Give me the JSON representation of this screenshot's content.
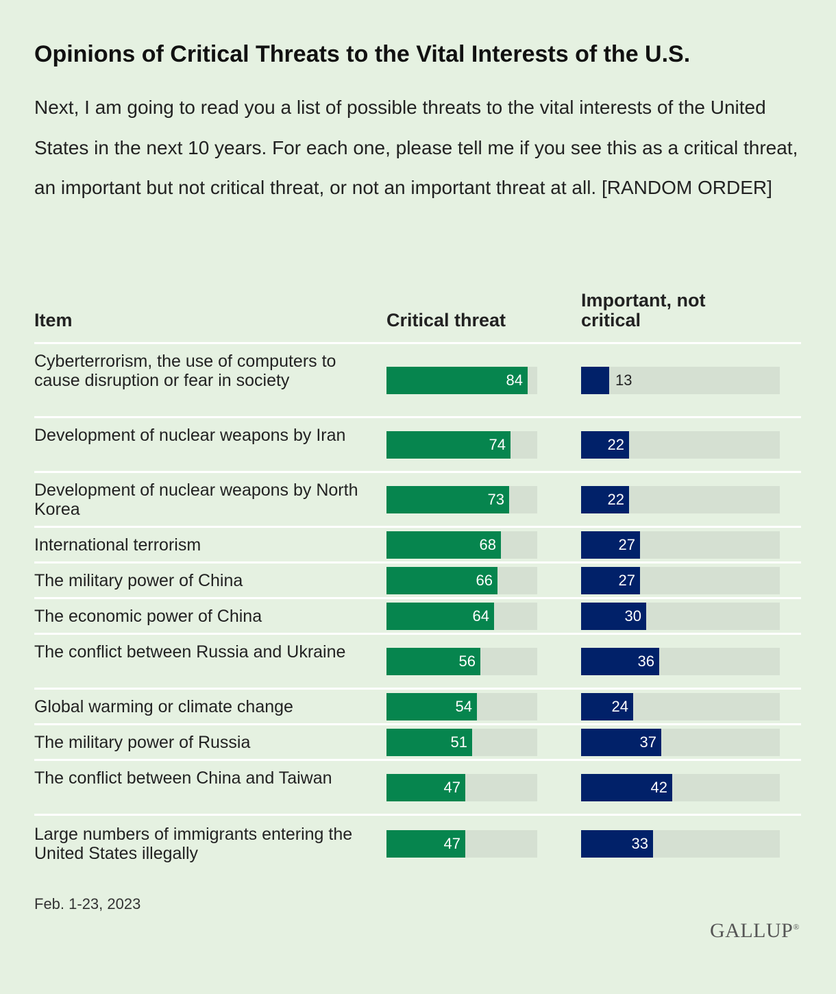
{
  "title": "Opinions of Critical Threats to the Vital Interests of the U.S.",
  "subtitle": "Next, I am going to read you a list of possible threats to the vital interests of the United States in the next 10 years. For each one, please tell me if you see this as a critical threat, an important but not critical threat, or not an important threat at all. [RANDOM ORDER]",
  "columns": {
    "item": "Item",
    "critical": "Critical threat",
    "important_line1": "Important, not",
    "important_line2": "critical"
  },
  "note": "Feb. 1-23, 2023",
  "logo": "GALLUP",
  "colors": {
    "critical": "#06854e",
    "important": "#012169",
    "track": "#d5e0d2",
    "background": "#e5f1e1"
  },
  "chart_data": {
    "type": "bar",
    "orientation": "horizontal",
    "xlim": [
      0,
      100
    ],
    "categories": [
      "Cyberterrorism, the use of computers to cause disruption or fear in society",
      "Development of nuclear weapons by Iran",
      "Development of nuclear weapons by North Korea",
      "International terrorism",
      "The military power of China",
      "The economic power of China",
      "The conflict between Russia and Ukraine",
      "Global warming or climate change",
      "The military power of Russia",
      "The conflict between China and Taiwan",
      "Large numbers of immigrants entering the United States illegally"
    ],
    "series": [
      {
        "name": "Critical threat",
        "values": [
          84,
          74,
          73,
          68,
          66,
          64,
          56,
          54,
          51,
          47,
          47
        ]
      },
      {
        "name": "Important, not critical",
        "values": [
          13,
          22,
          22,
          27,
          27,
          30,
          36,
          24,
          37,
          42,
          33
        ]
      }
    ]
  }
}
